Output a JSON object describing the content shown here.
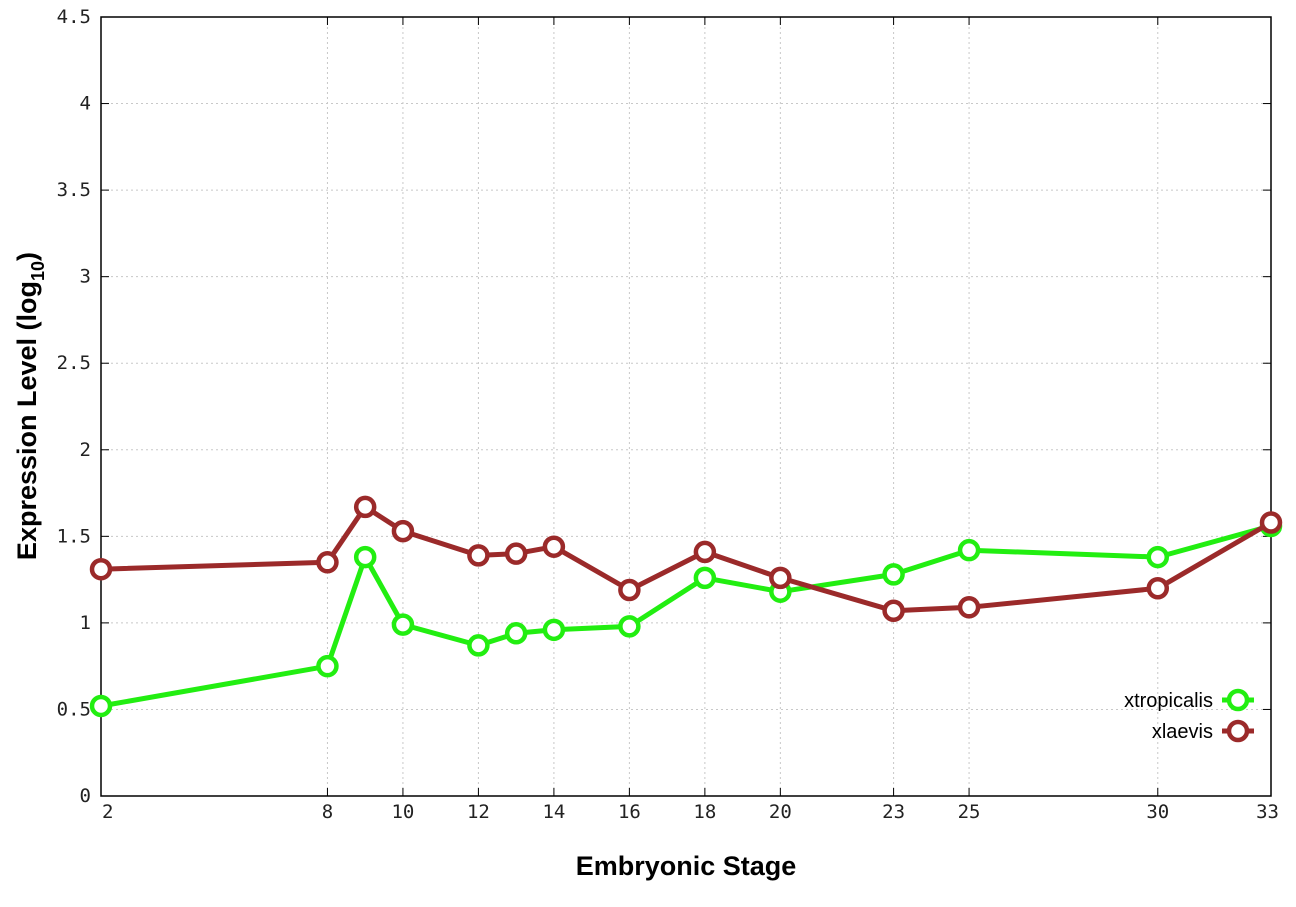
{
  "chart_data": {
    "type": "line",
    "xlabel": "Embryonic Stage",
    "ylabel": "Expression Level (log",
    "ylabel_sub": "10",
    "ylabel_close": ")",
    "x": [
      2,
      8,
      9,
      10,
      12,
      13,
      14,
      16,
      18,
      20,
      23,
      25,
      30,
      33
    ],
    "xticks": [
      "2",
      "8",
      "10",
      "12",
      "14",
      "16",
      "18",
      "20",
      "23",
      "25",
      "30",
      "33"
    ],
    "xtick_values": [
      2,
      8,
      10,
      12,
      14,
      16,
      18,
      20,
      23,
      25,
      30,
      33
    ],
    "yticks": [
      "0",
      "0.5",
      "1",
      "1.5",
      "2",
      "2.5",
      "3",
      "3.5",
      "4",
      "4.5"
    ],
    "ytick_values": [
      0,
      0.5,
      1,
      1.5,
      2,
      2.5,
      3,
      3.5,
      4,
      4.5
    ],
    "xlim": [
      2,
      33
    ],
    "ylim": [
      0,
      4.5
    ],
    "grid": true,
    "legend_position": "lower-right",
    "series": [
      {
        "name": "xtropicalis",
        "color": "#22ee11",
        "values": [
          0.52,
          0.75,
          1.38,
          0.99,
          0.87,
          0.94,
          0.96,
          0.98,
          1.26,
          1.18,
          1.28,
          1.42,
          1.38,
          1.56
        ]
      },
      {
        "name": "xlaevis",
        "color": "#9b2a2a",
        "values": [
          1.31,
          1.35,
          1.67,
          1.53,
          1.39,
          1.4,
          1.44,
          1.19,
          1.41,
          1.26,
          1.07,
          1.09,
          1.2,
          1.58
        ]
      }
    ]
  }
}
